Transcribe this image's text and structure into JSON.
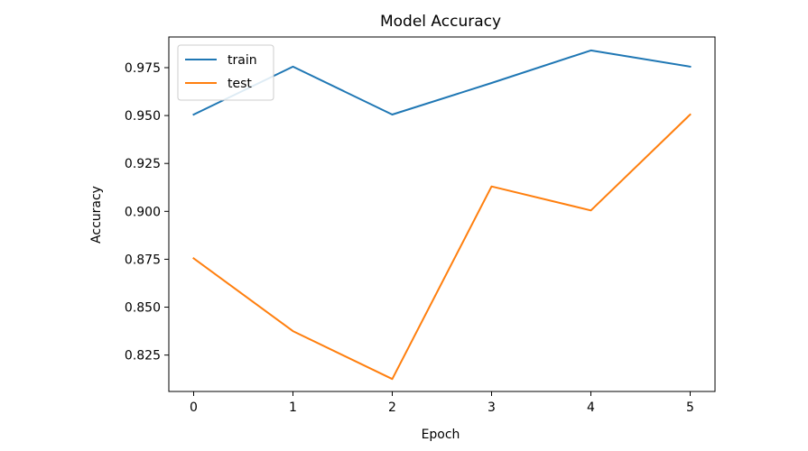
{
  "chart_data": {
    "type": "line",
    "title": "Model Accuracy",
    "xlabel": "Epoch",
    "ylabel": "Accuracy",
    "x": [
      0,
      1,
      2,
      3,
      4,
      5
    ],
    "x_ticks": [
      "0",
      "1",
      "2",
      "3",
      "4",
      "5"
    ],
    "xlim": [
      -0.25,
      5.25
    ],
    "ylim": [
      0.806,
      0.991
    ],
    "y_ticks": [
      0.825,
      0.85,
      0.875,
      0.9,
      0.925,
      0.95,
      0.975
    ],
    "y_tick_labels": [
      "0.825",
      "0.850",
      "0.875",
      "0.900",
      "0.925",
      "0.950",
      "0.975"
    ],
    "grid": false,
    "legend_position": "top-left",
    "series": [
      {
        "name": "train",
        "color": "#1f77b4",
        "values": [
          0.9505,
          0.9755,
          0.9505,
          0.967,
          0.984,
          0.9755
        ]
      },
      {
        "name": "test",
        "color": "#ff7f0e",
        "values": [
          0.8755,
          0.8375,
          0.8125,
          0.913,
          0.9005,
          0.9505
        ]
      }
    ]
  }
}
